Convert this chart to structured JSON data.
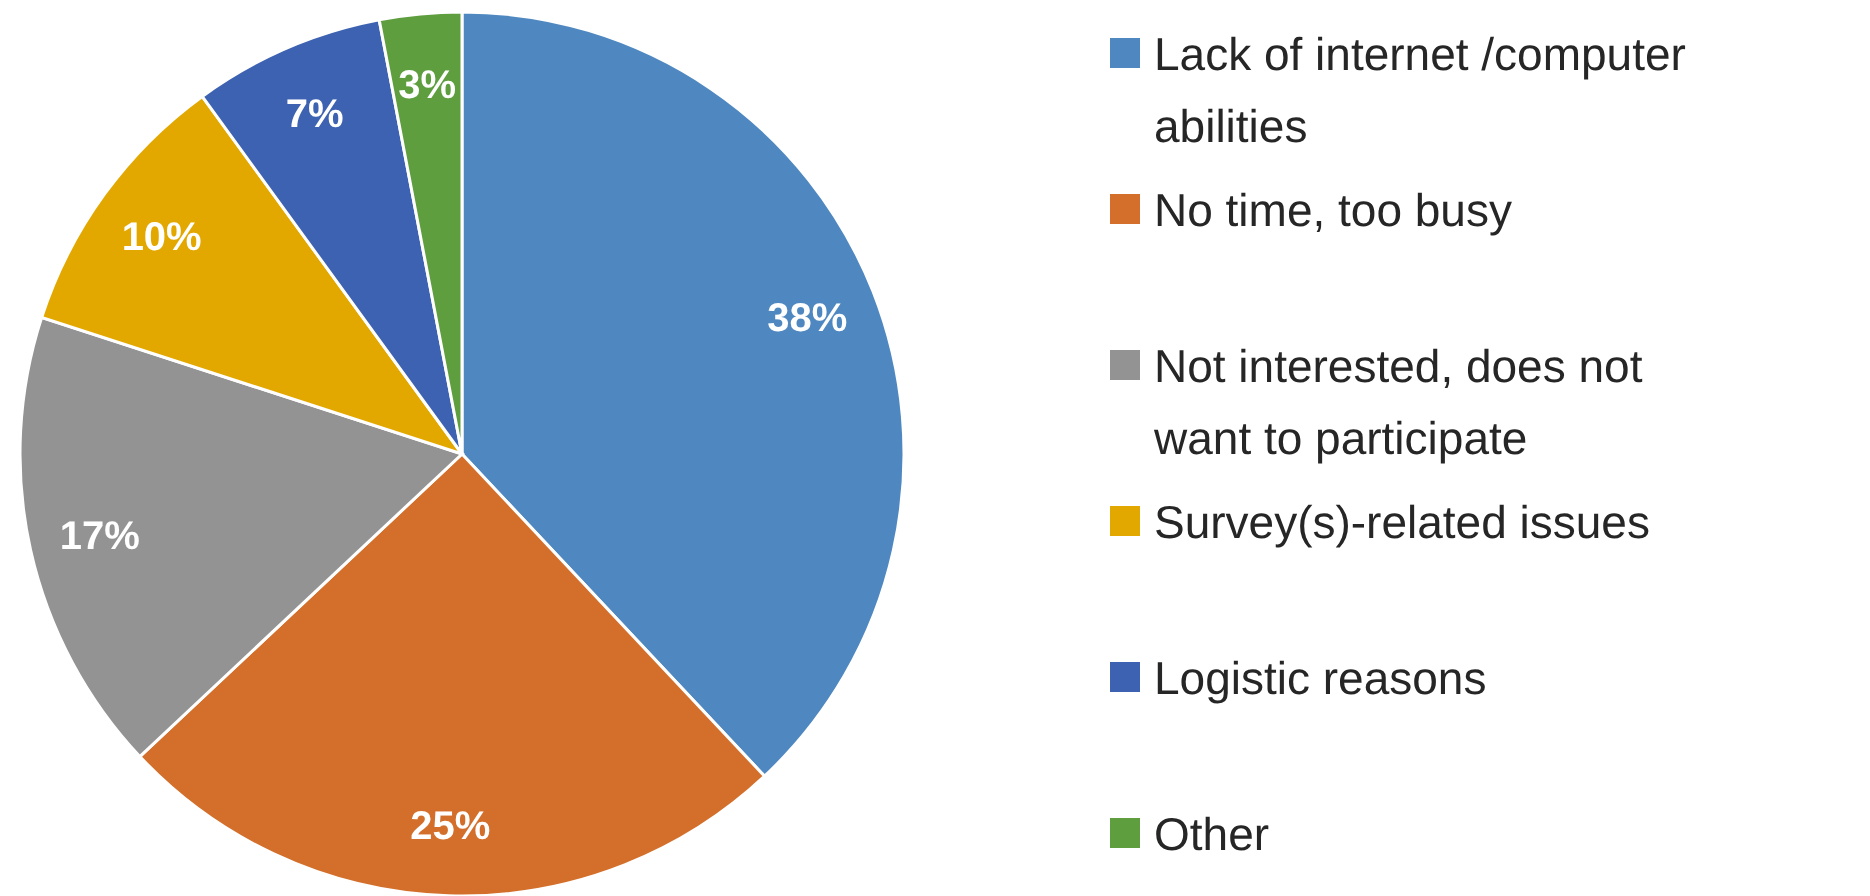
{
  "chart_data": {
    "type": "pie",
    "categories": [
      "Lack of internet /computer abilities",
      "No time, too busy",
      "Not interested, does not want to participate",
      "Survey(s)-related issues",
      "Logistic reasons",
      "Other"
    ],
    "values": [
      38,
      25,
      17,
      10,
      7,
      3
    ],
    "colors": [
      "#4f88c0",
      "#d36f2b",
      "#939393",
      "#e3a800",
      "#3d62b1",
      "#5f9e3f"
    ],
    "value_labels": [
      "38%",
      "25%",
      "17%",
      "10%",
      "7%",
      "3%"
    ],
    "legend": "right"
  }
}
